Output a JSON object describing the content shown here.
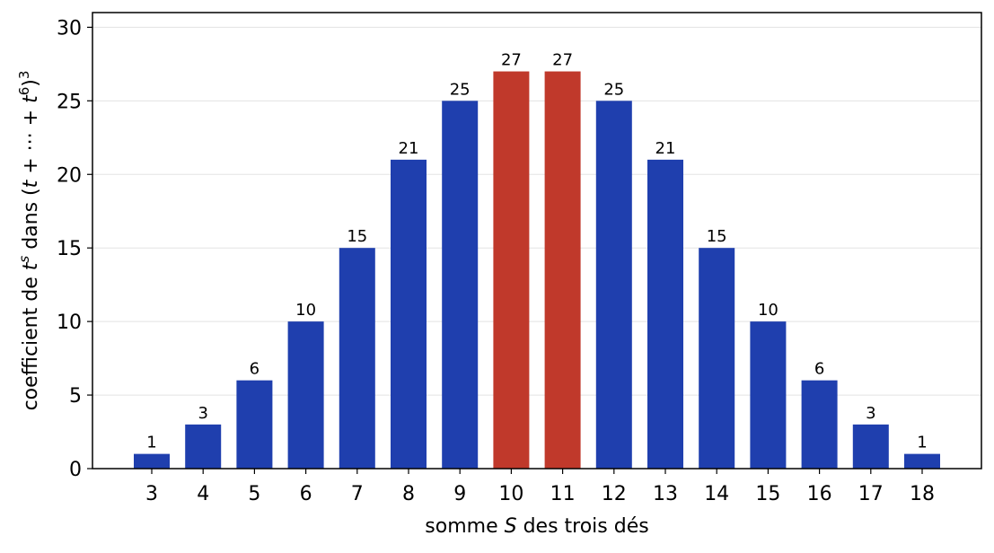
{
  "chart_data": {
    "type": "bar",
    "categories": [
      "3",
      "4",
      "5",
      "6",
      "7",
      "8",
      "9",
      "10",
      "11",
      "12",
      "13",
      "14",
      "15",
      "16",
      "17",
      "18"
    ],
    "values": [
      1,
      3,
      6,
      10,
      15,
      21,
      25,
      27,
      27,
      25,
      21,
      15,
      10,
      6,
      3,
      1
    ],
    "highlight_categories": [
      "10",
      "11"
    ],
    "colors": {
      "normal": "#1f3fae",
      "highlight": "#c0392b"
    },
    "xlabel": {
      "prefix": "somme ",
      "symbol": "S",
      "suffix": " des trois dés"
    },
    "ylabel": {
      "prefix": "coefficient de ",
      "base": "t",
      "sup": "s",
      "middle": " dans (",
      "t1": "t",
      "mid": " + ··· + ",
      "t6": "t",
      "sup6": "6",
      "close": ")",
      "cube": "3"
    },
    "ylim": [
      0,
      31
    ],
    "yticks": [
      0,
      5,
      10,
      15,
      20,
      25,
      30
    ],
    "grid": "horizontal",
    "data_labels": true
  }
}
